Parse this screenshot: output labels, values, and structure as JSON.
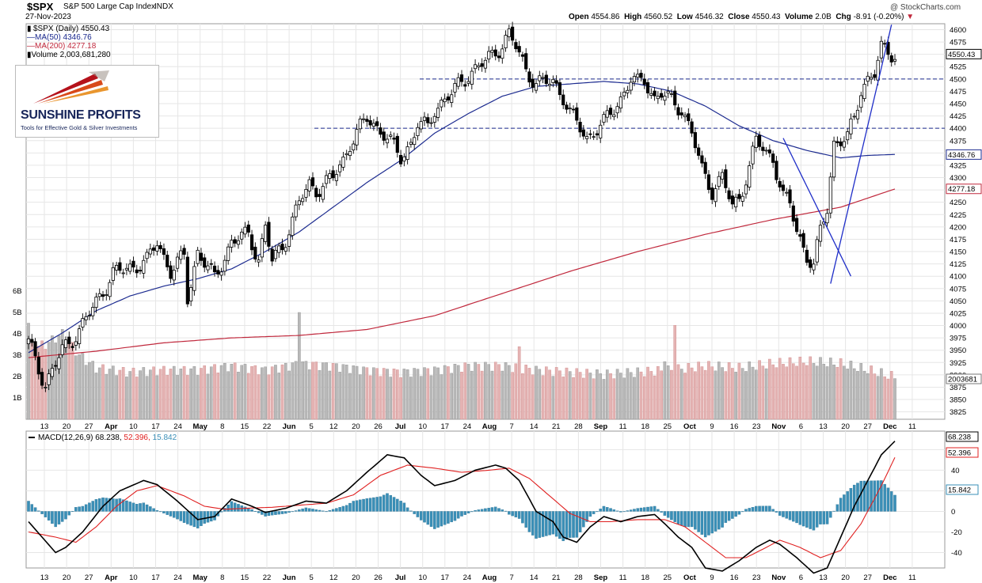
{
  "header": {
    "symbol": "$SPX",
    "description": "S&P 500 Large Cap Index",
    "exchange": "INDX",
    "date": "27-Nov-2023",
    "watermark": "@ StockCharts.com",
    "open_label": "Open",
    "open": "4554.86",
    "high_label": "High",
    "high": "4560.52",
    "low_label": "Low",
    "low": "4546.32",
    "close_label": "Close",
    "close": "4550.43",
    "volume_label": "Volume",
    "volume": "2.0B",
    "chg_label": "Chg",
    "chg": "-8.91 (-0.20%)"
  },
  "legend": {
    "price": "$SPX (Daily) 4550.43",
    "ma50": "MA(50) 4346.76",
    "ma200": "MA(200) 4277.18",
    "volume": "Volume 2,003,681,280"
  },
  "logo": {
    "name": "SUNSHINE PROFITS",
    "tagline": "Tools for Effective Gold & Silver Investments"
  },
  "colors": {
    "up_candle": "#ffffff",
    "down_candle": "#000000",
    "ma50": "#1b2a8f",
    "ma200": "#c0283c",
    "volume_up": "#b9b9b9",
    "volume_down": "#e4b3b3",
    "macd_line": "#000000",
    "signal_line": "#e02020",
    "histogram": "#3a8fb7",
    "trendline": "#1f2ec8",
    "grid": "#e6e6e6"
  },
  "price_labels": {
    "close": "4550.43",
    "ma50": "4346.76",
    "ma200": "4277.18",
    "volume": "2003681"
  },
  "macd_header": {
    "label": "MACD(12,26,9)",
    "macd": "68.238",
    "signal": "52.396",
    "hist": "15.842"
  },
  "macd_labels": {
    "macd": "68.238",
    "signal": "52.396",
    "hist": "15.842"
  },
  "chart_data": [
    {
      "type": "candlestick",
      "title": "$SPX S&P 500 Large Cap Index",
      "x_start": "2023-03-09",
      "x_end": "2023-11-27",
      "x_ticks": [
        "13",
        "20",
        "27",
        "Apr",
        "10",
        "17",
        "24",
        "May",
        "8",
        "15",
        "22",
        "Jun",
        "5",
        "12",
        "20",
        "26",
        "Jul",
        "10",
        "17",
        "24",
        "Aug",
        "7",
        "14",
        "21",
        "28",
        "Sep",
        "11",
        "18",
        "25",
        "Oct",
        "9",
        "16",
        "23",
        "Nov",
        "6",
        "13",
        "20",
        "27",
        "Dec",
        "11"
      ],
      "y_ticks": [
        3825,
        3850,
        3875,
        3900,
        3925,
        3950,
        3975,
        4000,
        4025,
        4050,
        4075,
        4100,
        4125,
        4150,
        4175,
        4200,
        4225,
        4250,
        4275,
        4300,
        4325,
        4350,
        4375,
        4400,
        4425,
        4450,
        4475,
        4500,
        4525,
        4550,
        4575,
        4600
      ],
      "ylim": [
        3810,
        4612
      ],
      "close_anchors": [
        [
          0,
          3965
        ],
        [
          5,
          3880
        ],
        [
          10,
          3950
        ],
        [
          15,
          3990
        ],
        [
          25,
          4105
        ],
        [
          35,
          4130
        ],
        [
          38,
          4170
        ],
        [
          42,
          4110
        ],
        [
          46,
          4140
        ],
        [
          47,
          4055
        ],
        [
          50,
          4150
        ],
        [
          55,
          4095
        ],
        [
          60,
          4170
        ],
        [
          65,
          4185
        ],
        [
          68,
          4135
        ],
        [
          70,
          4200
        ],
        [
          72,
          4130
        ],
        [
          75,
          4160
        ],
        [
          80,
          4250
        ],
        [
          83,
          4285
        ],
        [
          85,
          4275
        ],
        [
          90,
          4300
        ],
        [
          93,
          4335
        ],
        [
          95,
          4370
        ],
        [
          100,
          4420
        ],
        [
          105,
          4390
        ],
        [
          110,
          4340
        ],
        [
          113,
          4370
        ],
        [
          115,
          4410
        ],
        [
          118,
          4400
        ],
        [
          120,
          4440
        ],
        [
          125,
          4470
        ],
        [
          130,
          4510
        ],
        [
          135,
          4535
        ],
        [
          140,
          4570
        ],
        [
          142,
          4590
        ],
        [
          144,
          4565
        ],
        [
          147,
          4520
        ],
        [
          150,
          4490
        ],
        [
          155,
          4495
        ],
        [
          158,
          4465
        ],
        [
          160,
          4430
        ],
        [
          163,
          4400
        ],
        [
          165,
          4380
        ],
        [
          168,
          4400
        ],
        [
          170,
          4410
        ],
        [
          175,
          4460
        ],
        [
          178,
          4500
        ],
        [
          180,
          4490
        ],
        [
          182,
          4500
        ],
        [
          185,
          4460
        ],
        [
          187,
          4470
        ],
        [
          190,
          4455
        ],
        [
          193,
          4440
        ],
        [
          196,
          4390
        ],
        [
          199,
          4315
        ],
        [
          202,
          4275
        ],
        [
          205,
          4300
        ],
        [
          208,
          4240
        ],
        [
          210,
          4260
        ],
        [
          213,
          4320
        ],
        [
          215,
          4375
        ],
        [
          218,
          4350
        ],
        [
          220,
          4340
        ],
        [
          223,
          4260
        ],
        [
          225,
          4245
        ],
        [
          227,
          4195
        ],
        [
          230,
          4140
        ],
        [
          232,
          4120
        ],
        [
          234,
          4190
        ],
        [
          236,
          4240
        ],
        [
          238,
          4370
        ],
        [
          240,
          4375
        ],
        [
          242,
          4380
        ],
        [
          244,
          4420
        ],
        [
          246,
          4480
        ],
        [
          248,
          4500
        ],
        [
          250,
          4510
        ],
        [
          252,
          4560
        ],
        [
          254,
          4556
        ],
        [
          256,
          4550
        ]
      ],
      "ma50_anchors": [
        [
          0,
          3945
        ],
        [
          10,
          3985
        ],
        [
          20,
          4030
        ],
        [
          30,
          4060
        ],
        [
          40,
          4080
        ],
        [
          50,
          4095
        ],
        [
          60,
          4115
        ],
        [
          70,
          4150
        ],
        [
          80,
          4190
        ],
        [
          90,
          4240
        ],
        [
          100,
          4290
        ],
        [
          110,
          4335
        ],
        [
          120,
          4390
        ],
        [
          130,
          4430
        ],
        [
          140,
          4465
        ],
        [
          150,
          4485
        ],
        [
          160,
          4490
        ],
        [
          170,
          4495
        ],
        [
          180,
          4490
        ],
        [
          190,
          4475
        ],
        [
          200,
          4445
        ],
        [
          210,
          4405
        ],
        [
          220,
          4375
        ],
        [
          230,
          4355
        ],
        [
          240,
          4340
        ],
        [
          248,
          4345
        ],
        [
          256,
          4347
        ]
      ],
      "ma200_anchors": [
        [
          0,
          3935
        ],
        [
          20,
          3948
        ],
        [
          40,
          3965
        ],
        [
          60,
          3975
        ],
        [
          80,
          3980
        ],
        [
          100,
          3992
        ],
        [
          120,
          4020
        ],
        [
          140,
          4065
        ],
        [
          160,
          4110
        ],
        [
          180,
          4150
        ],
        [
          200,
          4185
        ],
        [
          220,
          4215
        ],
        [
          240,
          4240
        ],
        [
          256,
          4277
        ]
      ],
      "hlines": [
        4500,
        4400
      ],
      "trendlines": [
        [
          [
            223,
            4380
          ],
          [
            243,
            4100
          ]
        ],
        [
          [
            237,
            4085
          ],
          [
            255,
            4610
          ]
        ]
      ]
    },
    {
      "type": "bar",
      "title": "Volume",
      "y_ticks": [
        "1B",
        "2B",
        "3B",
        "4B",
        "5B",
        "6B"
      ],
      "ylim": [
        0,
        7
      ],
      "volume_anchors": [
        [
          0,
          3.3
        ],
        [
          5,
          3.5
        ],
        [
          10,
          4.0
        ],
        [
          15,
          3.0
        ],
        [
          20,
          2.4
        ],
        [
          30,
          2.2
        ],
        [
          40,
          2.3
        ],
        [
          50,
          2.3
        ],
        [
          60,
          2.5
        ],
        [
          70,
          2.3
        ],
        [
          80,
          2.6
        ],
        [
          90,
          2.5
        ],
        [
          100,
          2.3
        ],
        [
          110,
          2.2
        ],
        [
          120,
          2.3
        ],
        [
          130,
          2.5
        ],
        [
          140,
          2.5
        ],
        [
          150,
          2.3
        ],
        [
          160,
          2.2
        ],
        [
          170,
          2.1
        ],
        [
          180,
          2.2
        ],
        [
          190,
          2.3
        ],
        [
          200,
          2.5
        ],
        [
          210,
          2.4
        ],
        [
          220,
          2.6
        ],
        [
          230,
          2.7
        ],
        [
          240,
          2.6
        ],
        [
          248,
          2.3
        ],
        [
          255,
          2.0
        ]
      ],
      "spikes": [
        [
          80,
          5.0
        ],
        [
          191,
          4.4
        ],
        [
          0,
          4.5
        ],
        [
          145,
          3.4
        ],
        [
          188,
          2.7
        ]
      ]
    },
    {
      "type": "line",
      "title": "MACD(12,26,9)",
      "y_ticks": [
        -40,
        -20,
        0,
        20,
        40,
        60
      ],
      "ylim": [
        -55,
        78
      ],
      "macd_anchors": [
        [
          0,
          -10
        ],
        [
          4,
          -25
        ],
        [
          8,
          -40
        ],
        [
          11,
          -35
        ],
        [
          16,
          -20
        ],
        [
          22,
          5
        ],
        [
          27,
          20
        ],
        [
          34,
          30
        ],
        [
          38,
          26
        ],
        [
          44,
          10
        ],
        [
          50,
          -8
        ],
        [
          55,
          -5
        ],
        [
          60,
          12
        ],
        [
          66,
          5
        ],
        [
          70,
          -1
        ],
        [
          76,
          3
        ],
        [
          82,
          10
        ],
        [
          88,
          8
        ],
        [
          94,
          20
        ],
        [
          100,
          38
        ],
        [
          106,
          55
        ],
        [
          111,
          52
        ],
        [
          116,
          35
        ],
        [
          120,
          25
        ],
        [
          126,
          30
        ],
        [
          132,
          40
        ],
        [
          138,
          45
        ],
        [
          141,
          42
        ],
        [
          145,
          30
        ],
        [
          150,
          0
        ],
        [
          155,
          -10
        ],
        [
          158,
          -25
        ],
        [
          162,
          -30
        ],
        [
          166,
          -15
        ],
        [
          170,
          -5
        ],
        [
          175,
          -10
        ],
        [
          180,
          -5
        ],
        [
          185,
          -3
        ],
        [
          188,
          -12
        ],
        [
          192,
          -25
        ],
        [
          196,
          -35
        ],
        [
          200,
          -55
        ],
        [
          205,
          -58
        ],
        [
          210,
          -48
        ],
        [
          215,
          -35
        ],
        [
          219,
          -28
        ],
        [
          222,
          -32
        ],
        [
          227,
          -45
        ],
        [
          232,
          -60
        ],
        [
          236,
          -55
        ],
        [
          240,
          -25
        ],
        [
          244,
          5
        ],
        [
          248,
          30
        ],
        [
          252,
          55
        ],
        [
          256,
          68.2
        ]
      ],
      "signal_anchors": [
        [
          0,
          -20
        ],
        [
          8,
          -25
        ],
        [
          14,
          -30
        ],
        [
          20,
          -15
        ],
        [
          26,
          5
        ],
        [
          32,
          20
        ],
        [
          38,
          25
        ],
        [
          46,
          15
        ],
        [
          52,
          5
        ],
        [
          58,
          2
        ],
        [
          64,
          3
        ],
        [
          72,
          4
        ],
        [
          80,
          6
        ],
        [
          88,
          8
        ],
        [
          96,
          16
        ],
        [
          104,
          35
        ],
        [
          112,
          45
        ],
        [
          120,
          42
        ],
        [
          128,
          38
        ],
        [
          136,
          40
        ],
        [
          142,
          42
        ],
        [
          148,
          32
        ],
        [
          154,
          15
        ],
        [
          160,
          -2
        ],
        [
          166,
          -10
        ],
        [
          172,
          -10
        ],
        [
          180,
          -8
        ],
        [
          188,
          -8
        ],
        [
          194,
          -15
        ],
        [
          200,
          -30
        ],
        [
          206,
          -45
        ],
        [
          212,
          -45
        ],
        [
          218,
          -35
        ],
        [
          222,
          -28
        ],
        [
          228,
          -35
        ],
        [
          234,
          -45
        ],
        [
          240,
          -38
        ],
        [
          246,
          -12
        ],
        [
          252,
          25
        ],
        [
          256,
          52.4
        ]
      ]
    }
  ]
}
